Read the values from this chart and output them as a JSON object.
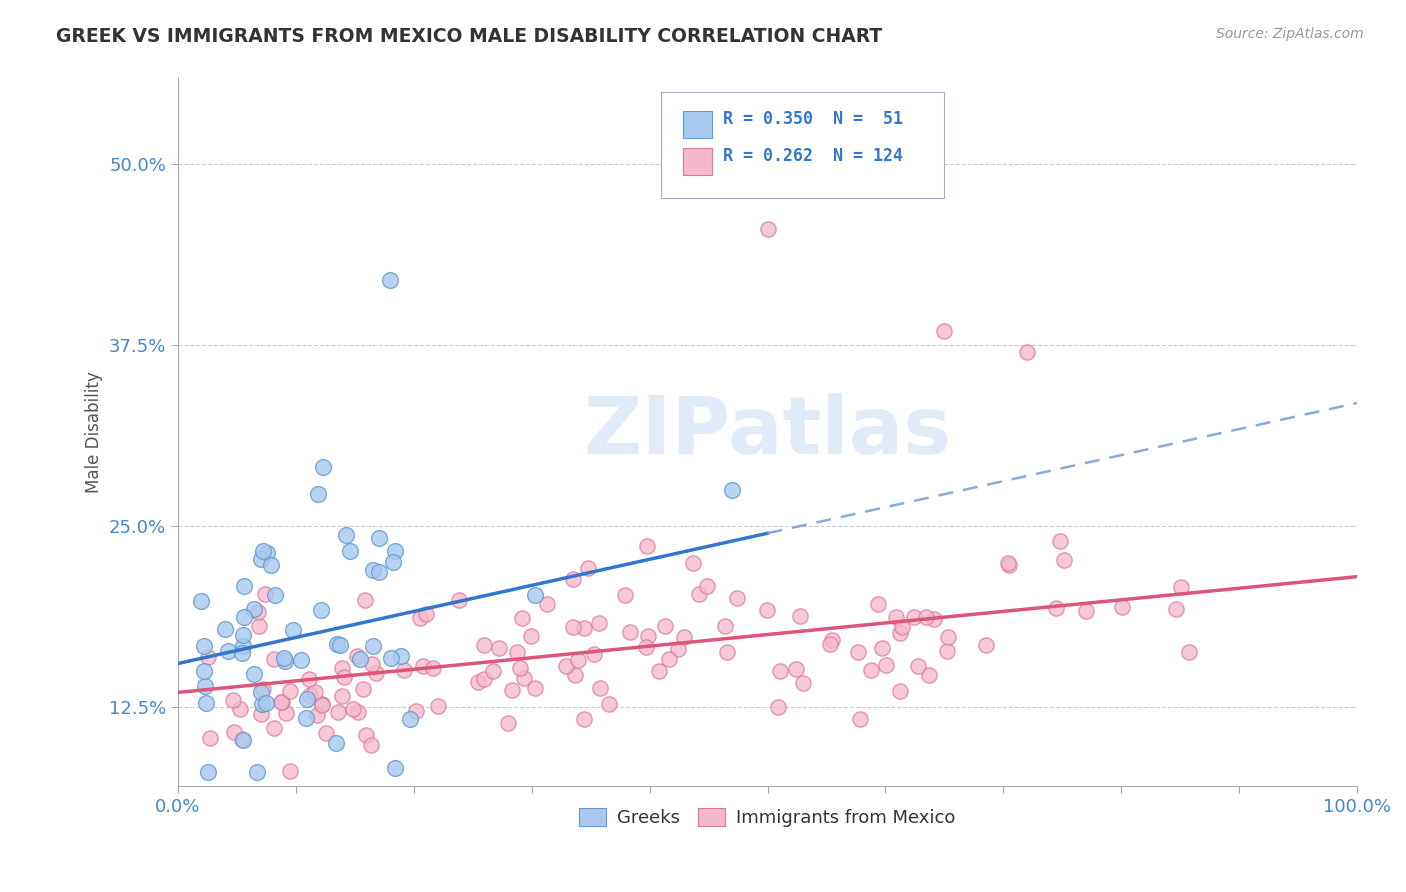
{
  "title": "GREEK VS IMMIGRANTS FROM MEXICO MALE DISABILITY CORRELATION CHART",
  "source": "Source: ZipAtlas.com",
  "ylabel": "Male Disability",
  "xlabel": "",
  "watermark": "ZIPatlas",
  "xlim": [
    0.0,
    1.0
  ],
  "ylim": [
    0.07,
    0.56
  ],
  "yticks": [
    0.125,
    0.25,
    0.375,
    0.5
  ],
  "ytick_labels": [
    "12.5%",
    "25.0%",
    "37.5%",
    "50.0%"
  ],
  "xticks": [
    0.0,
    0.1,
    0.2,
    0.3,
    0.4,
    0.5,
    0.6,
    0.7,
    0.8,
    0.9,
    1.0
  ],
  "greek_color": "#a8c8f0",
  "greek_edge_color": "#6699cc",
  "mexico_color": "#f5b8cc",
  "mexico_edge_color": "#dd7799",
  "greek_line_color": "#3377cc",
  "greek_dash_color": "#88aadd",
  "mexico_line_color": "#dd5577",
  "tick_color": "#4488cc",
  "legend_R_greek": "0.350",
  "legend_N_greek": "51",
  "legend_R_mexico": "0.262",
  "legend_N_mexico": "124",
  "background_color": "#ffffff",
  "grid_color": "#cccccc",
  "greek_line_y0": 0.155,
  "greek_line_y_at_half": 0.245,
  "mexico_line_y0": 0.135,
  "mexico_line_y1": 0.215
}
